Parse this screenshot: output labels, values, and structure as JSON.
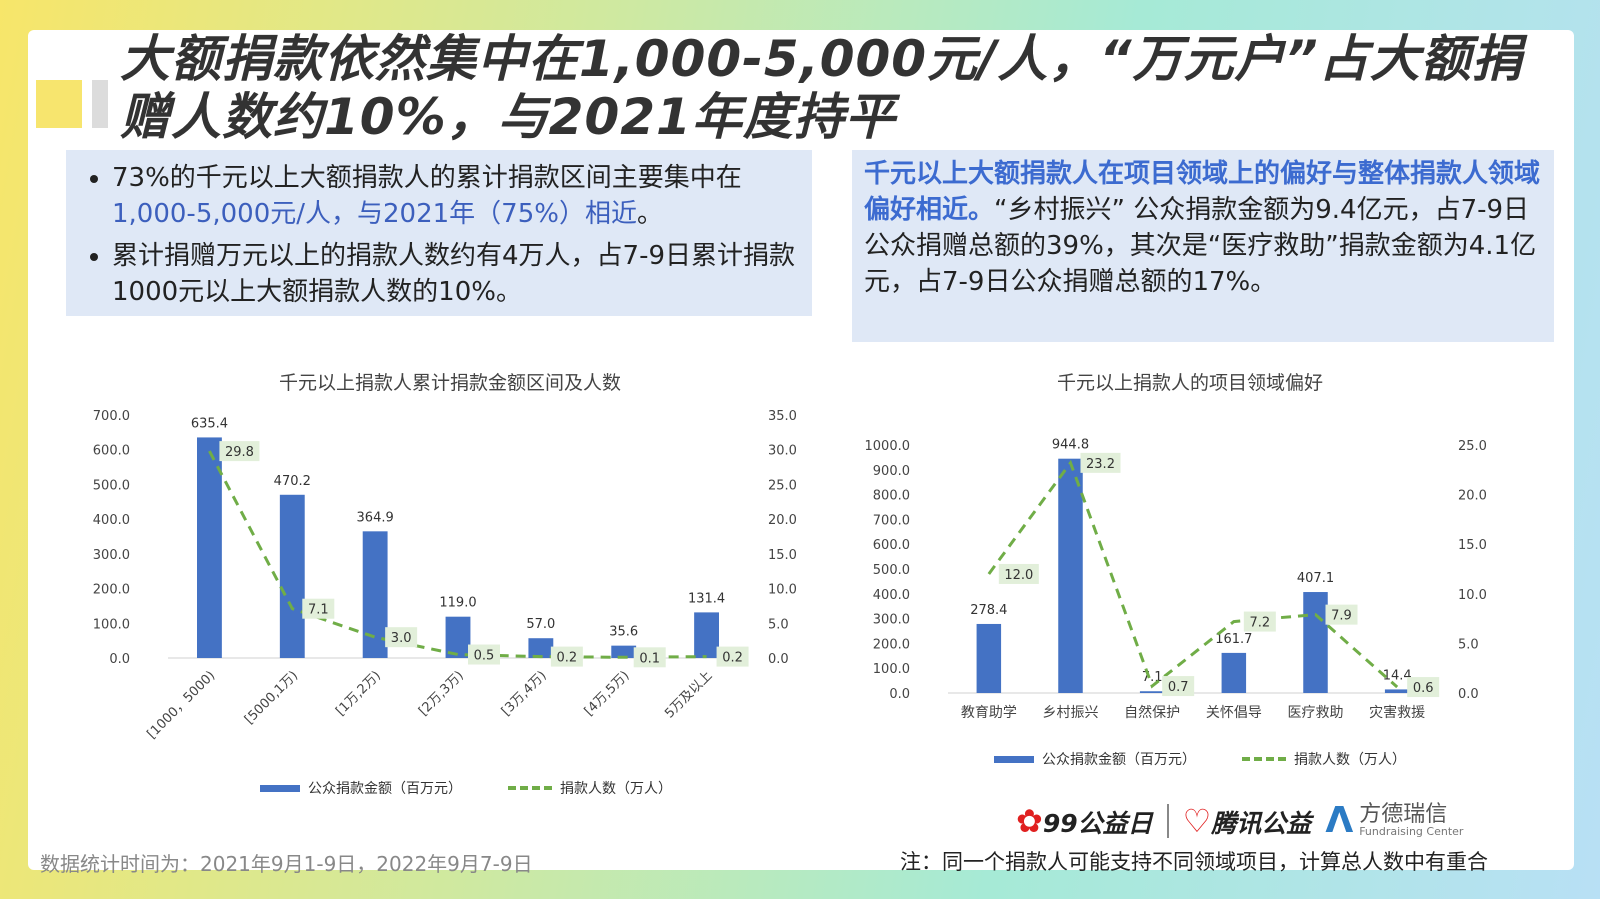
{
  "title": "大额捐款依然集中在1,000-5,000元/人，“万元户”占大额捐赠人数约10%，与2021年度持平",
  "left_box": {
    "bullet1_pre": "73%的千元以上大额捐款人的累计捐款区间主要集中在",
    "bullet1_hl": "1,000-5,000元/人，与2021年（75%）相近",
    "bullet1_post": "。",
    "bullet2": "累计捐赠万元以上的捐款人数约有4万人，占7-9日累计捐款1000元以上大额捐款人数的10%。"
  },
  "right_box": {
    "hl": "千元以上大额捐款人在项目领域上的偏好与整体捐款人领域偏好相近。",
    "text": "“乡村振兴” 公众捐款金额为9.4亿元，占7-9日公众捐赠总额的39%，其次是“医疗救助”捐款金额为4.1亿元，占7-9日公众捐赠总额的17%。"
  },
  "colors": {
    "bar": "#4472c4",
    "line": "#70ad47",
    "highlight": "#3c5fbd"
  },
  "chart_data": [
    {
      "type": "bar",
      "title": "千元以上捐款人累计捐款金额区间及人数",
      "categories": [
        "[1000，5000)",
        "[5000,1万)",
        "[1万,2万)",
        "[2万,3万)",
        "[3万,4万)",
        "[4万,5万)",
        "5万及以上"
      ],
      "series": [
        {
          "name": "公众捐款金额（百万元）",
          "type": "bar",
          "axis": "left",
          "values": [
            635.4,
            470.2,
            364.9,
            119.0,
            57.0,
            35.6,
            131.4
          ]
        },
        {
          "name": "捐款人数（万人）",
          "type": "line",
          "axis": "right",
          "values": [
            29.8,
            7.1,
            3.0,
            0.5,
            0.2,
            0.1,
            0.2
          ]
        }
      ],
      "y_left": {
        "ylim": [
          0,
          700
        ],
        "ticks": [
          "700.0",
          "600.0",
          "500.0",
          "400.0",
          "300.0",
          "200.0",
          "100.0",
          "0.0"
        ]
      },
      "y_right": {
        "ylim": [
          0,
          35
        ],
        "ticks": [
          "35.0",
          "30.0",
          "25.0",
          "20.0",
          "15.0",
          "10.0",
          "5.0",
          "0.0"
        ]
      },
      "bar_labels": [
        "635.4",
        "470.2",
        "364.9",
        "119.0",
        "57.0",
        "35.6",
        "131.4"
      ],
      "line_labels": [
        "29.8",
        "7.1",
        "3.0",
        "0.5",
        "0.2",
        "0.1",
        "0.2"
      ]
    },
    {
      "type": "bar",
      "title": "千元以上捐款人的项目领域偏好",
      "categories": [
        "教育助学",
        "乡村振兴",
        "自然保护",
        "关怀倡导",
        "医疗救助",
        "灾害救援"
      ],
      "series": [
        {
          "name": "公众捐款金额（百万元）",
          "type": "bar",
          "axis": "left",
          "values": [
            278.4,
            944.8,
            7.1,
            161.7,
            407.1,
            14.4
          ]
        },
        {
          "name": "捐款人数（万人）",
          "type": "line",
          "axis": "right",
          "values": [
            12.0,
            23.2,
            0.7,
            7.2,
            7.9,
            0.6
          ]
        }
      ],
      "y_left": {
        "ylim": [
          0,
          1000
        ],
        "ticks": [
          "1000.0",
          "900.0",
          "800.0",
          "700.0",
          "600.0",
          "500.0",
          "400.0",
          "300.0",
          "200.0",
          "100.0",
          "0.0"
        ]
      },
      "y_right": {
        "ylim": [
          0,
          25
        ],
        "ticks": [
          "25.0",
          "20.0",
          "15.0",
          "10.0",
          "5.0",
          "0.0"
        ]
      },
      "bar_labels": [
        "278.4",
        "944.8",
        "7.1",
        "161.7",
        "407.1",
        "14.4"
      ],
      "line_labels": [
        "12.0",
        "23.2",
        "0.7",
        "7.2",
        "7.9",
        "0.6"
      ]
    }
  ],
  "legend": {
    "bar": "公众捐款金额（百万元）",
    "line": "捐款人数（万人）"
  },
  "footer": {
    "left": "数据统计时间为：2021年9月1-9日，2022年9月7-9日",
    "right": "注：同一个捐款人可能支持不同领域项目，计算总人数中有重合"
  },
  "logos": {
    "logo1": "99公益日",
    "logo2": "腾讯公益",
    "logo3_cn": "方德瑞信",
    "logo3_en": "Fundraising Center"
  }
}
